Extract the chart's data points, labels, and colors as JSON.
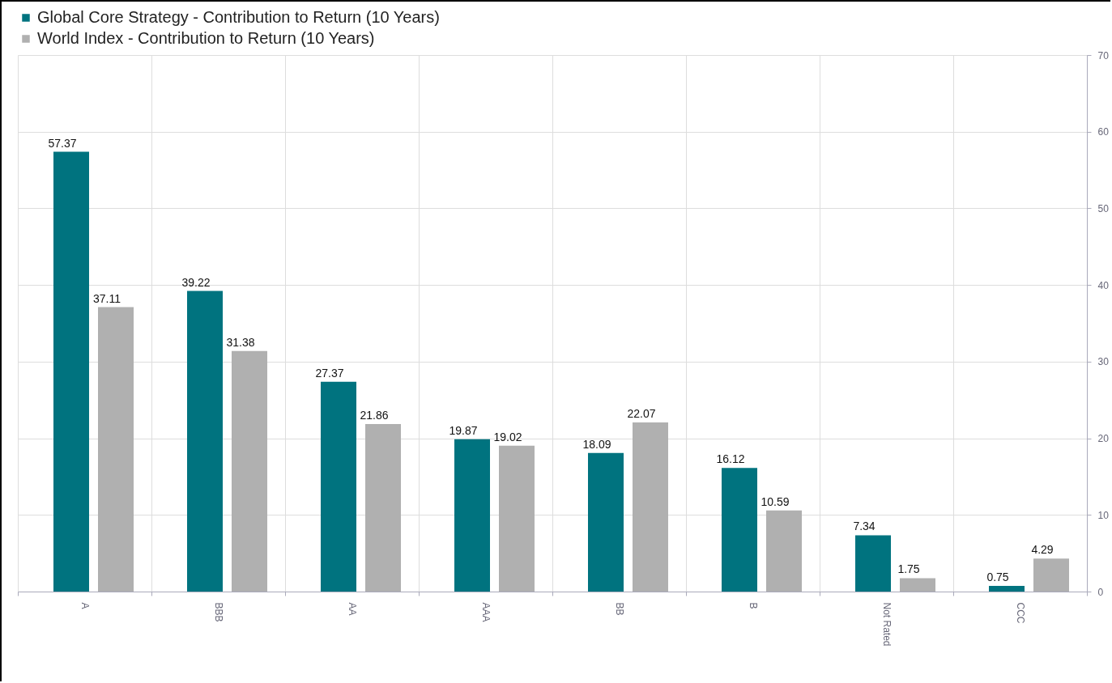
{
  "chart_data": {
    "type": "bar",
    "categories": [
      "A",
      "BBB",
      "AA",
      "AAA",
      "BB",
      "B",
      "Not Rated",
      "CCC"
    ],
    "series": [
      {
        "name": "Global Core Strategy - Contribution to Return (10 Years)",
        "color": "#00737f",
        "values": [
          57.37,
          39.22,
          27.37,
          19.87,
          18.09,
          16.12,
          7.34,
          0.75
        ]
      },
      {
        "name": "World Index - Contribution to Return (10 Years)",
        "color": "#b0b0b0",
        "values": [
          37.11,
          31.38,
          21.86,
          19.02,
          22.07,
          10.59,
          1.75,
          4.29
        ]
      }
    ],
    "ylim": [
      0,
      70
    ],
    "yticks": [
      0,
      10,
      20,
      30,
      40,
      50,
      60,
      70
    ],
    "grid": true,
    "legend": "top left",
    "data_labels": true
  }
}
